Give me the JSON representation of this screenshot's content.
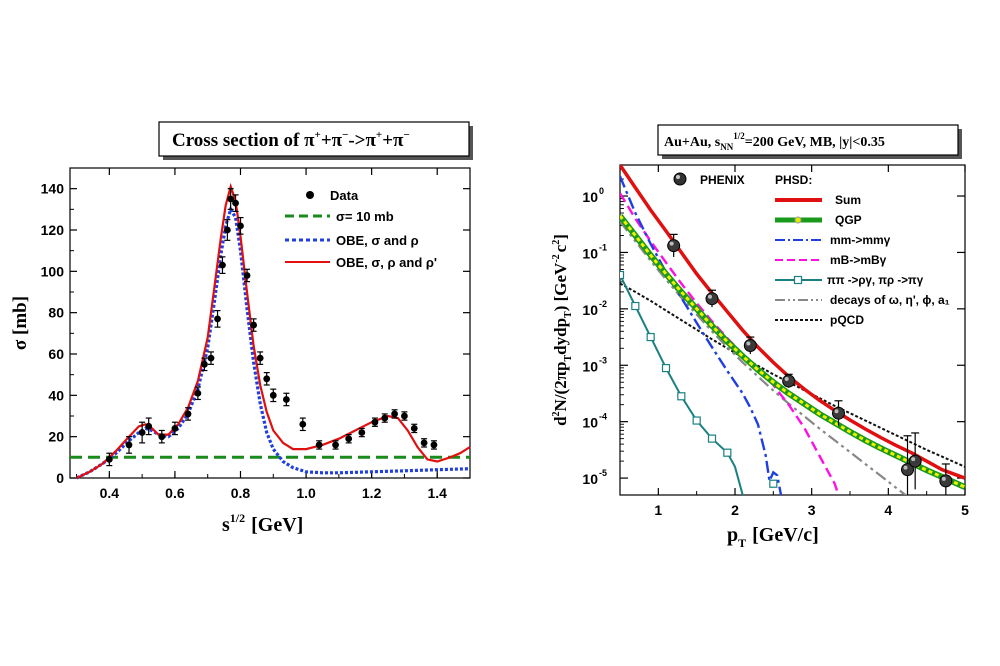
{
  "chart_data": [
    {
      "type": "line",
      "title": "Cross section of π⁺+π⁻->π⁺+π⁻",
      "title_parts": [
        "Cross section of π",
        "+",
        "+π",
        "−",
        "->π",
        "+",
        "+π",
        "−"
      ],
      "xlabel": "s",
      "xlabel_sup": "1/2",
      "xlabel_unit": "[GeV]",
      "ylabel": "σ [mb]",
      "xlim": [
        0.28,
        1.5
      ],
      "ylim": [
        0,
        150
      ],
      "xticks": [
        0.4,
        0.6,
        0.8,
        1.0,
        1.2,
        1.4
      ],
      "xtick_labels": [
        "0.4",
        "0.6",
        "0.8",
        "1.0",
        "1.2",
        "1.4"
      ],
      "yticks": [
        0,
        20,
        40,
        60,
        80,
        100,
        120,
        140
      ],
      "ytick_labels": [
        "0",
        "20",
        "40",
        "60",
        "80",
        "100",
        "120",
        "140"
      ],
      "legend": [
        "Data",
        "σ= 10 mb",
        "OBE, σ and ρ",
        "OBE, σ, ρ and ρ'"
      ],
      "series": [
        {
          "name": "σ= 10 mb",
          "color": "#1a8a1a",
          "style": "dashed",
          "x": [
            0.28,
            1.5
          ],
          "y": [
            10,
            10
          ]
        },
        {
          "name": "OBE, σ and ρ",
          "color": "#1f3fe0",
          "style": "dotted",
          "x": [
            0.3,
            0.34,
            0.38,
            0.42,
            0.46,
            0.49,
            0.51,
            0.53,
            0.55,
            0.58,
            0.61,
            0.64,
            0.67,
            0.7,
            0.72,
            0.74,
            0.755,
            0.77,
            0.785,
            0.8,
            0.82,
            0.84,
            0.86,
            0.88,
            0.9,
            0.93,
            0.96,
            1.0,
            1.05,
            1.1,
            1.2,
            1.3,
            1.4,
            1.5
          ],
          "y": [
            0,
            3,
            7,
            12,
            18,
            22,
            24,
            23,
            21,
            20,
            24,
            31,
            43,
            63,
            85,
            108,
            122,
            130,
            126,
            110,
            82,
            56,
            36,
            22,
            14,
            8,
            5,
            3,
            2.5,
            2.5,
            3,
            3.5,
            4,
            4.5
          ]
        },
        {
          "name": "OBE, σ, ρ and ρ'",
          "color": "#e01010",
          "style": "solid",
          "x": [
            0.3,
            0.34,
            0.38,
            0.42,
            0.46,
            0.49,
            0.51,
            0.53,
            0.55,
            0.58,
            0.61,
            0.64,
            0.67,
            0.7,
            0.72,
            0.74,
            0.755,
            0.77,
            0.785,
            0.8,
            0.82,
            0.84,
            0.86,
            0.88,
            0.9,
            0.93,
            0.96,
            1.0,
            1.05,
            1.1,
            1.15,
            1.2,
            1.25,
            1.28,
            1.31,
            1.34,
            1.37,
            1.4,
            1.44,
            1.47,
            1.5
          ],
          "y": [
            0,
            3,
            7,
            13,
            20,
            25,
            26,
            24,
            21,
            21,
            26,
            34,
            47,
            68,
            92,
            116,
            132,
            141,
            134,
            117,
            90,
            64,
            45,
            32,
            23,
            17,
            14,
            14,
            16,
            19,
            23,
            27,
            30,
            29,
            23,
            15,
            9,
            8,
            10,
            12,
            15
          ]
        }
      ],
      "data_points": {
        "name": "Data",
        "x": [
          0.4,
          0.46,
          0.5,
          0.52,
          0.56,
          0.6,
          0.64,
          0.67,
          0.69,
          0.71,
          0.73,
          0.745,
          0.76,
          0.77,
          0.785,
          0.8,
          0.82,
          0.84,
          0.86,
          0.88,
          0.9,
          0.94,
          0.99,
          1.04,
          1.09,
          1.13,
          1.17,
          1.21,
          1.24,
          1.27,
          1.3,
          1.33,
          1.36,
          1.39
        ],
        "y": [
          9,
          16,
          22,
          25,
          20,
          24,
          31,
          41,
          55,
          58,
          77,
          103,
          120,
          135,
          133,
          122,
          98,
          74,
          58,
          48,
          40,
          38,
          26,
          16,
          16,
          19,
          22,
          27,
          29,
          31,
          30,
          24,
          17,
          16
        ],
        "err": [
          3,
          4,
          5,
          4,
          3,
          3,
          3,
          3,
          3,
          3,
          4,
          4,
          5,
          5,
          4,
          4,
          3,
          3,
          3,
          3,
          3,
          3,
          3,
          2,
          2,
          2,
          2,
          2,
          2,
          2,
          2,
          2,
          2,
          2
        ]
      }
    },
    {
      "type": "line",
      "yscale": "log",
      "title": "Au+Au, s_NN^1/2=200 GeV, MB, |y|<0.35",
      "title_parts": [
        "Au+Au, s",
        "NN",
        "1/2",
        "=200 GeV, MB, |y|<0.35"
      ],
      "xlabel": "p",
      "xlabel_sub": "T",
      "xlabel_unit": "[GeV/c]",
      "ylabel": "d²N/(2πp_T dydp_T)  [GeV⁻² c²]",
      "ylabel_parts": [
        "d",
        "2",
        "N/(2πp",
        "T",
        "dydp",
        "T",
        ")  [GeV",
        "-2",
        "c",
        "2",
        "]"
      ],
      "xlim": [
        0.5,
        5.0
      ],
      "ylim_log10": [
        -5.3,
        0.55
      ],
      "xticks": [
        1,
        2,
        3,
        4,
        5
      ],
      "xtick_labels": [
        "1",
        "2",
        "3",
        "4",
        "5"
      ],
      "yticks_log10": [
        0,
        -1,
        -2,
        -3,
        -4,
        -5
      ],
      "ytick_labels": [
        "10",
        "10",
        "10",
        "10",
        "10",
        "10"
      ],
      "ytick_exponents": [
        "0",
        "-1",
        "-2",
        "-3",
        "-4",
        "-5"
      ],
      "legend_header": [
        "PHENIX",
        "PHSD:"
      ],
      "legend": [
        "Sum",
        "QGP",
        "mm->mmγ",
        "mB->mBγ",
        "ππ ->ργ, πρ ->πγ",
        "decays of ω, η', ϕ, a₁",
        "pQCD"
      ],
      "series": [
        {
          "name": "Sum",
          "color": "#e01010",
          "style": "solid",
          "x": [
            0.5,
            0.7,
            0.9,
            1.1,
            1.3,
            1.5,
            1.7,
            1.9,
            2.1,
            2.3,
            2.5,
            2.7,
            2.9,
            3.1,
            3.3,
            3.5,
            3.7,
            3.9,
            4.1,
            4.3,
            4.5,
            4.7,
            4.9,
            5.0
          ],
          "log10y": [
            0.55,
            0.15,
            -0.25,
            -0.62,
            -1.0,
            -1.38,
            -1.72,
            -2.05,
            -2.38,
            -2.68,
            -2.95,
            -3.2,
            -3.42,
            -3.62,
            -3.8,
            -3.97,
            -4.13,
            -4.28,
            -4.42,
            -4.55,
            -4.7,
            -4.85,
            -4.95,
            -5.0
          ]
        },
        {
          "name": "QGP",
          "color": "#c8c800",
          "style": "band",
          "x": [
            0.5,
            0.7,
            0.9,
            1.1,
            1.3,
            1.5,
            1.7,
            1.9,
            2.1,
            2.3,
            2.5,
            2.7,
            2.9,
            3.1,
            3.3,
            3.5,
            3.7,
            3.9,
            4.1,
            4.3,
            4.5,
            4.7,
            4.9,
            5.0
          ],
          "log10y": [
            -0.35,
            -0.7,
            -1.05,
            -1.38,
            -1.7,
            -2.0,
            -2.3,
            -2.58,
            -2.84,
            -3.08,
            -3.3,
            -3.5,
            -3.68,
            -3.86,
            -4.02,
            -4.18,
            -4.33,
            -4.47,
            -4.6,
            -4.73,
            -4.86,
            -4.98,
            -5.1,
            -5.16
          ]
        },
        {
          "name": "mm->mmγ",
          "color": "#1f3fe0",
          "style": "dashdot",
          "x": [
            0.5,
            0.7,
            0.9,
            1.1,
            1.3,
            1.5,
            1.7,
            1.9,
            2.1,
            2.2,
            2.3,
            2.4,
            2.45,
            2.5,
            2.55,
            2.6,
            2.65
          ],
          "log10y": [
            0.35,
            -0.3,
            -0.85,
            -1.35,
            -1.8,
            -2.25,
            -2.68,
            -3.1,
            -3.5,
            -3.75,
            -4.05,
            -4.6,
            -5.05,
            -4.9,
            -4.95,
            -5.3,
            -5.5
          ]
        },
        {
          "name": "mB->mBγ",
          "color": "#ff10e0",
          "style": "dashed",
          "x": [
            0.5,
            0.7,
            0.9,
            1.1,
            1.3,
            1.5,
            1.7,
            1.9,
            2.1,
            2.3,
            2.5,
            2.7,
            2.9,
            3.1,
            3.3,
            3.4
          ],
          "log10y": [
            0.05,
            -0.4,
            -0.8,
            -1.18,
            -1.55,
            -1.9,
            -2.22,
            -2.52,
            -2.8,
            -3.07,
            -3.35,
            -3.7,
            -4.1,
            -4.6,
            -5.1,
            -5.5
          ]
        },
        {
          "name": "ππ ->ργ, πρ ->πγ",
          "color": "#1a8080",
          "style": "solid-square",
          "x": [
            0.5,
            0.7,
            0.9,
            1.1,
            1.3,
            1.5,
            1.7,
            1.9,
            2.0,
            2.1,
            2.15,
            2.2
          ],
          "log10y": [
            -1.4,
            -1.95,
            -2.5,
            -3.05,
            -3.55,
            -3.98,
            -4.3,
            -4.55,
            -4.8,
            -5.3,
            -5.6,
            -5.9
          ],
          "markers_x": [
            0.5,
            0.7,
            0.9,
            1.1,
            1.3,
            1.5,
            1.7,
            1.9,
            2.5
          ],
          "markers_log10y": [
            -1.4,
            -1.95,
            -2.5,
            -3.05,
            -3.55,
            -3.98,
            -4.3,
            -4.55,
            -5.1
          ]
        },
        {
          "name": "decays of ω, η', ϕ, a₁",
          "color": "#888888",
          "style": "dashdotdot",
          "x": [
            0.5,
            0.7,
            0.9,
            1.1,
            1.3,
            1.5,
            1.7,
            1.9,
            2.1,
            2.3,
            2.5,
            2.7,
            2.9,
            3.1,
            3.3,
            3.5,
            3.7,
            3.9,
            4.1,
            4.3,
            4.5
          ],
          "log10y": [
            -0.45,
            -0.8,
            -1.15,
            -1.48,
            -1.8,
            -2.1,
            -2.4,
            -2.68,
            -2.95,
            -3.2,
            -3.45,
            -3.68,
            -3.9,
            -4.12,
            -4.33,
            -4.54,
            -4.75,
            -4.96,
            -5.17,
            -5.38,
            -5.6
          ]
        },
        {
          "name": "pQCD",
          "color": "#111111",
          "style": "dotted",
          "x": [
            0.5,
            0.7,
            0.9,
            1.1,
            1.3,
            1.5,
            1.7,
            1.9,
            2.1,
            2.3,
            2.5,
            2.7,
            2.9,
            3.1,
            3.3,
            3.5,
            3.7,
            3.9,
            4.1,
            4.3,
            4.5,
            4.7,
            4.9,
            5.0
          ],
          "log10y": [
            -1.55,
            -1.7,
            -1.86,
            -2.03,
            -2.2,
            -2.37,
            -2.54,
            -2.7,
            -2.86,
            -3.01,
            -3.16,
            -3.3,
            -3.44,
            -3.58,
            -3.72,
            -3.85,
            -3.98,
            -4.11,
            -4.24,
            -4.37,
            -4.5,
            -4.62,
            -4.74,
            -4.8
          ]
        }
      ],
      "data_points": {
        "name": "PHENIX",
        "x": [
          1.2,
          1.7,
          2.2,
          2.7,
          3.35,
          4.25,
          4.35,
          4.75
        ],
        "log10y": [
          -0.88,
          -1.82,
          -2.65,
          -3.28,
          -3.85,
          -4.85,
          -4.7,
          -5.05
        ],
        "err_log10": [
          0.2,
          0.15,
          0.15,
          0.12,
          0.22,
          0.6,
          0.5,
          0.3
        ]
      }
    }
  ]
}
